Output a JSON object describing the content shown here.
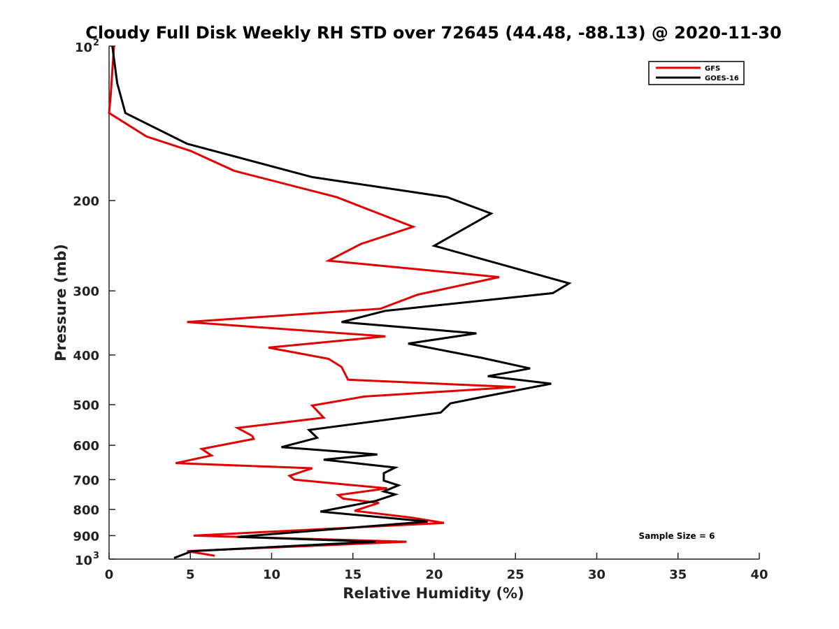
{
  "chart_data": {
    "type": "line",
    "title": "Cloudy Full Disk Weekly RH STD over 72645 (44.48, -88.13) @ 2020-11-30",
    "xlabel": "Relative Humidity (%)",
    "ylabel": "Pressure (mb)",
    "xlim": [
      0,
      40
    ],
    "ylim": [
      100,
      1000
    ],
    "y_scale": "log",
    "y_reversed": true,
    "grid": false,
    "legend_position": "top-right",
    "x_ticks": [
      0,
      5,
      10,
      15,
      20,
      25,
      30,
      35,
      40
    ],
    "y_ticks": [
      200,
      300,
      400,
      500,
      600,
      700,
      800,
      900
    ],
    "y_tick_labels": [
      "200",
      "300",
      "400",
      "500",
      "600",
      "700",
      "800",
      "900"
    ],
    "y_decade_labels": [
      {
        "value": 100,
        "base": "10",
        "exp": "2"
      },
      {
        "value": 1000,
        "base": "10",
        "exp": "3"
      }
    ],
    "annotation": "Sample Size = 6",
    "series": [
      {
        "name": "GFS",
        "color": "#e00000",
        "points": [
          [
            0.3,
            100
          ],
          [
            0.1,
            125
          ],
          [
            0.0,
            135
          ],
          [
            2.3,
            150
          ],
          [
            5.0,
            160
          ],
          [
            7.7,
            175
          ],
          [
            14.0,
            197
          ],
          [
            18.7,
            225
          ],
          [
            15.5,
            243
          ],
          [
            13.5,
            262
          ],
          [
            24.0,
            282
          ],
          [
            19.0,
            305
          ],
          [
            16.7,
            325
          ],
          [
            4.8,
            345
          ],
          [
            17.0,
            368
          ],
          [
            9.8,
            387
          ],
          [
            13.5,
            407
          ],
          [
            14.3,
            422
          ],
          [
            14.7,
            447
          ],
          [
            25.0,
            462
          ],
          [
            15.7,
            482
          ],
          [
            12.5,
            502
          ],
          [
            13.2,
            530
          ],
          [
            7.9,
            555
          ],
          [
            8.8,
            575
          ],
          [
            8.9,
            583
          ],
          [
            5.7,
            610
          ],
          [
            6.3,
            628
          ],
          [
            4.1,
            650
          ],
          [
            12.5,
            665
          ],
          [
            11.1,
            688
          ],
          [
            11.4,
            700
          ],
          [
            17.1,
            728
          ],
          [
            14.1,
            750
          ],
          [
            14.4,
            762
          ],
          [
            16.6,
            777
          ],
          [
            15.1,
            805
          ],
          [
            18.6,
            830
          ],
          [
            20.6,
            850
          ],
          [
            5.2,
            900
          ],
          [
            18.3,
            925
          ],
          [
            4.8,
            965
          ],
          [
            6.5,
            985
          ]
        ]
      },
      {
        "name": "GOES-16",
        "color": "#000000",
        "points": [
          [
            0.2,
            100
          ],
          [
            0.5,
            118
          ],
          [
            1.0,
            135
          ],
          [
            4.8,
            155
          ],
          [
            12.5,
            180
          ],
          [
            20.8,
            197
          ],
          [
            23.5,
            212
          ],
          [
            20.0,
            245
          ],
          [
            28.3,
            290
          ],
          [
            27.3,
            303
          ],
          [
            17.0,
            328
          ],
          [
            14.3,
            345
          ],
          [
            22.6,
            363
          ],
          [
            18.4,
            380
          ],
          [
            22.9,
            405
          ],
          [
            25.9,
            425
          ],
          [
            23.3,
            440
          ],
          [
            27.2,
            455
          ],
          [
            23.4,
            480
          ],
          [
            21.0,
            497
          ],
          [
            20.4,
            518
          ],
          [
            12.3,
            560
          ],
          [
            12.8,
            580
          ],
          [
            10.6,
            605
          ],
          [
            16.5,
            625
          ],
          [
            13.2,
            640
          ],
          [
            17.6,
            663
          ],
          [
            16.9,
            680
          ],
          [
            16.9,
            703
          ],
          [
            17.8,
            718
          ],
          [
            16.9,
            738
          ],
          [
            17.6,
            748
          ],
          [
            16.4,
            770
          ],
          [
            13.0,
            808
          ],
          [
            19.6,
            845
          ],
          [
            7.9,
            905
          ],
          [
            16.4,
            925
          ],
          [
            5.1,
            965
          ],
          [
            4.0,
            995
          ]
        ]
      }
    ]
  }
}
